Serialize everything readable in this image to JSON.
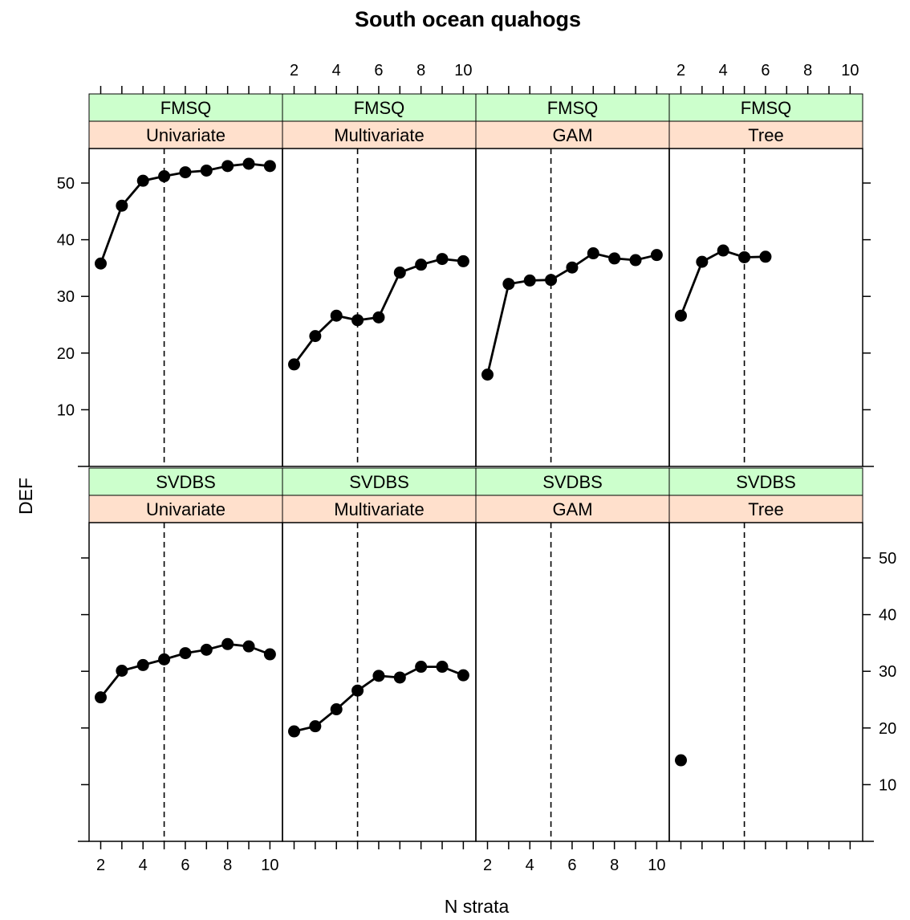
{
  "chart_data": {
    "type": "line",
    "title": "South ocean quahogs",
    "xlabel": "N strata",
    "ylabel": "DEF",
    "xlim": [
      1.5,
      10.5
    ],
    "ylim": [
      0,
      56
    ],
    "x_ticks": [
      2,
      4,
      6,
      8,
      10
    ],
    "y_ticks": [
      10,
      20,
      30,
      40,
      50
    ],
    "reference_line_x": 5,
    "point_style": "filled circle",
    "line_color": "#000000",
    "strip_colors": {
      "outer": "#ccffcc",
      "inner": "#ffe0cc"
    },
    "panels": [
      {
        "row": 0,
        "col": 0,
        "data_source": "FMSQ",
        "method": "Univariate",
        "x": [
          2,
          3,
          4,
          5,
          6,
          7,
          8,
          9,
          10
        ],
        "y": [
          35.8,
          46.0,
          50.4,
          51.2,
          51.9,
          52.2,
          53.0,
          53.4,
          53.0
        ]
      },
      {
        "row": 0,
        "col": 1,
        "data_source": "FMSQ",
        "method": "Multivariate",
        "x": [
          2,
          3,
          4,
          5,
          6,
          7,
          8,
          9,
          10
        ],
        "y": [
          18.0,
          23.0,
          26.6,
          25.8,
          26.3,
          34.2,
          35.6,
          36.6,
          36.2
        ]
      },
      {
        "row": 0,
        "col": 2,
        "data_source": "FMSQ",
        "method": "GAM",
        "x": [
          2,
          3,
          4,
          5,
          6,
          7,
          8,
          9,
          10
        ],
        "y": [
          16.2,
          32.2,
          32.8,
          32.9,
          35.1,
          37.6,
          36.7,
          36.4,
          37.3
        ]
      },
      {
        "row": 0,
        "col": 3,
        "data_source": "FMSQ",
        "method": "Tree",
        "x": [
          2,
          3,
          4,
          5,
          6
        ],
        "y": [
          26.6,
          36.1,
          38.1,
          36.9,
          37.0
        ]
      },
      {
        "row": 1,
        "col": 0,
        "data_source": "SVDBS",
        "method": "Univariate",
        "x": [
          2,
          3,
          4,
          5,
          6,
          7,
          8,
          9,
          10
        ],
        "y": [
          25.4,
          30.1,
          31.1,
          32.1,
          33.2,
          33.8,
          34.8,
          34.4,
          33.0
        ]
      },
      {
        "row": 1,
        "col": 1,
        "data_source": "SVDBS",
        "method": "Multivariate",
        "x": [
          2,
          3,
          4,
          5,
          6,
          7,
          8,
          9,
          10
        ],
        "y": [
          19.4,
          20.3,
          23.3,
          26.6,
          29.2,
          28.9,
          30.8,
          30.8,
          29.3
        ]
      },
      {
        "row": 1,
        "col": 2,
        "data_source": "SVDBS",
        "method": "GAM",
        "x": [],
        "y": []
      },
      {
        "row": 1,
        "col": 3,
        "data_source": "SVDBS",
        "method": "Tree",
        "x": [
          2
        ],
        "y": [
          14.3
        ]
      }
    ]
  }
}
